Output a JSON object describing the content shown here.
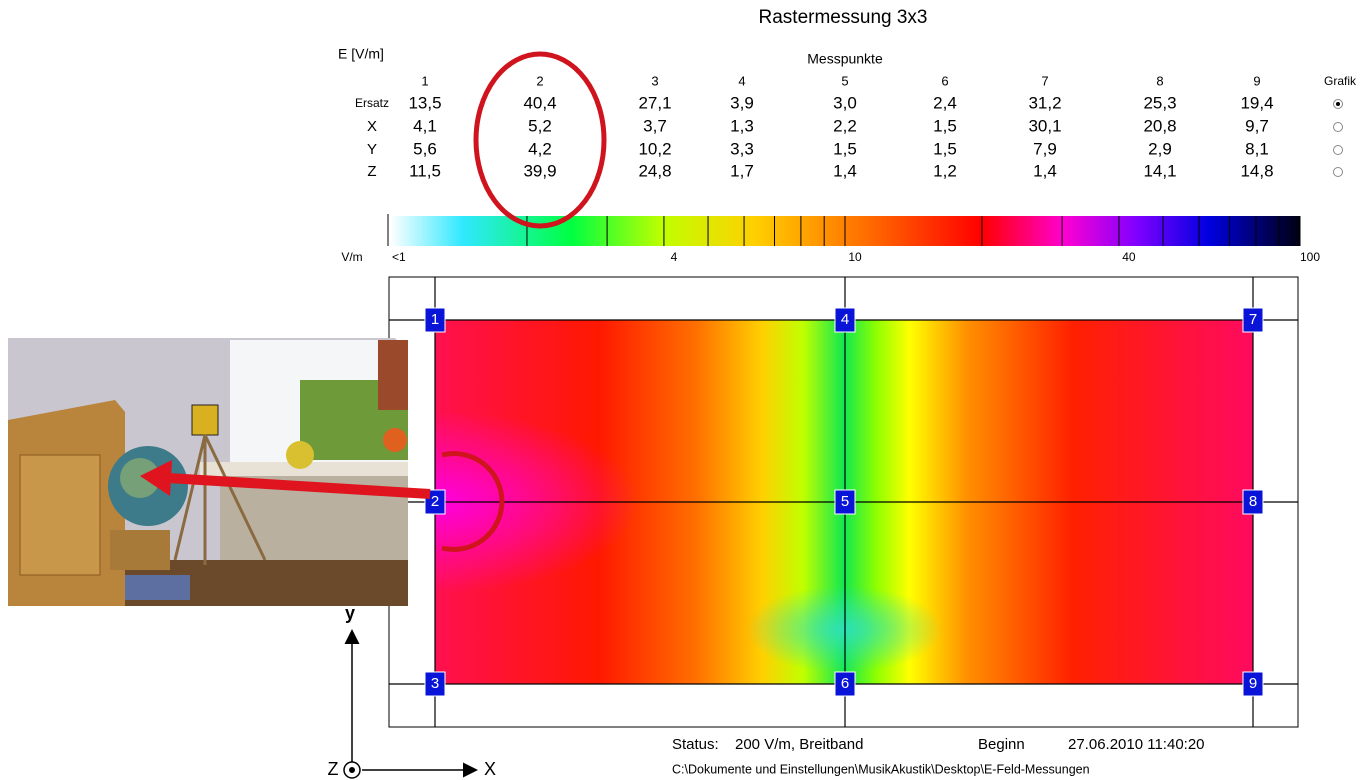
{
  "title": "Rastermessung 3x3",
  "unit_label": "E [V/m]",
  "table": {
    "group_header": "Messpunkte",
    "columns": [
      "1",
      "2",
      "3",
      "4",
      "5",
      "6",
      "7",
      "8",
      "9"
    ],
    "grafik_header": "Grafik",
    "rows": [
      {
        "label": "Ersatz",
        "values": [
          "13,5",
          "40,4",
          "27,1",
          "3,9",
          "3,0",
          "2,4",
          "31,2",
          "25,3",
          "19,4"
        ],
        "selected": true
      },
      {
        "label": "X",
        "values": [
          "4,1",
          "5,2",
          "3,7",
          "1,3",
          "2,2",
          "1,5",
          "30,1",
          "20,8",
          "9,7"
        ],
        "selected": false
      },
      {
        "label": "Y",
        "values": [
          "5,6",
          "4,2",
          "10,2",
          "3,3",
          "1,5",
          "1,5",
          "7,9",
          "2,9",
          "8,1"
        ],
        "selected": false
      },
      {
        "label": "Z",
        "values": [
          "11,5",
          "39,9",
          "24,8",
          "1,7",
          "1,4",
          "1,2",
          "1,4",
          "14,1",
          "14,8"
        ],
        "selected": false
      }
    ]
  },
  "scale": {
    "unit": "V/m",
    "log": true,
    "lim": [
      1,
      100
    ],
    "ticks": [
      {
        "value": 1,
        "label": "<1"
      },
      4,
      10,
      40,
      100
    ],
    "minor_ticks": [
      2,
      3,
      5,
      6,
      7,
      8,
      9,
      20,
      30,
      50,
      60,
      70,
      80,
      90
    ]
  },
  "grid_points": [
    "1",
    "2",
    "3",
    "4",
    "5",
    "6",
    "7",
    "8",
    "9"
  ],
  "axes": {
    "y": "y",
    "x": "X",
    "z": "Z"
  },
  "status": {
    "label": "Status:",
    "value": "200 V/m, Breitband",
    "begin_label": "Beginn",
    "begin_value": "27.06.2010 11:40:20",
    "path": "C:\\Dokumente und Einstellungen\\MusikAkustik\\Desktop\\E-Feld-Messungen"
  }
}
